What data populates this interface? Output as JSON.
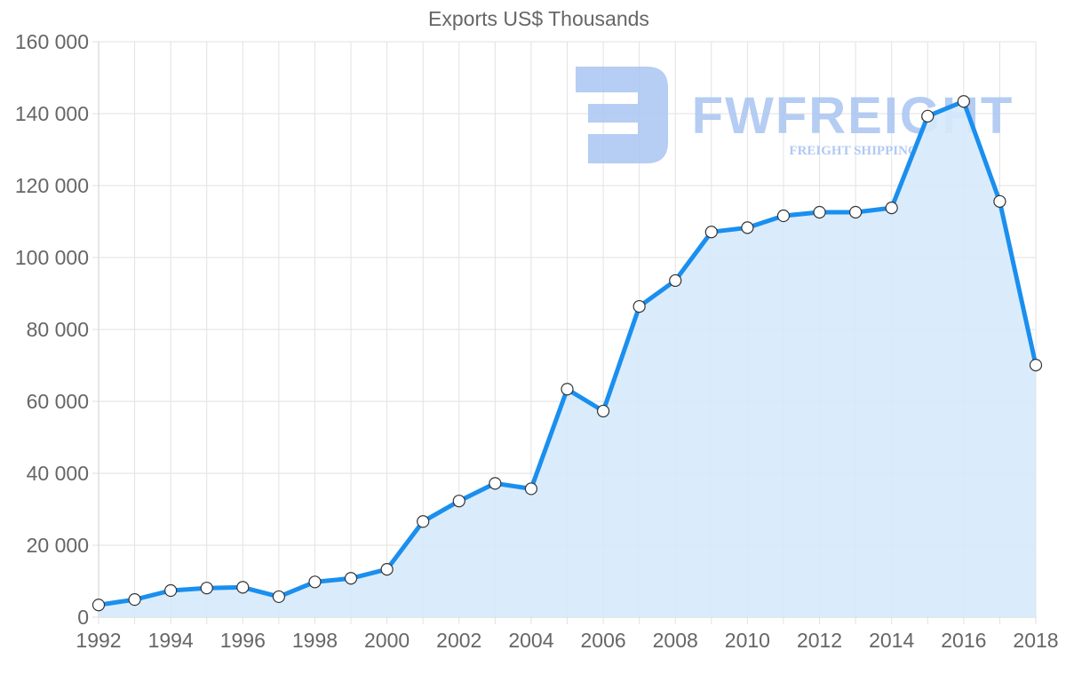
{
  "chart_data": {
    "type": "line",
    "title": "Exports US$ Thousands",
    "xlabel": "",
    "ylabel": "",
    "x": [
      1992,
      1993,
      1994,
      1995,
      1996,
      1997,
      1998,
      1999,
      2000,
      2001,
      2002,
      2003,
      2004,
      2005,
      2006,
      2007,
      2008,
      2009,
      2010,
      2011,
      2012,
      2013,
      2014,
      2015,
      2016,
      2017,
      2018
    ],
    "series": [
      {
        "name": "Exports US$ Thousands",
        "values": [
          3400,
          4900,
          7400,
          8100,
          8300,
          5700,
          9800,
          10800,
          13300,
          26600,
          32300,
          37200,
          35700,
          63400,
          57300,
          86400,
          93600,
          107100,
          108300,
          111600,
          112600,
          112600,
          113800,
          139300,
          143400,
          115600,
          70100
        ],
        "fill": true
      }
    ],
    "ylim": [
      0,
      160000
    ],
    "xlim": [
      1992,
      2018
    ],
    "y_ticks": [
      "0",
      "20 000",
      "40 000",
      "60 000",
      "80 000",
      "100 000",
      "120 000",
      "140 000",
      "160 000"
    ],
    "y_tick_values": [
      0,
      20000,
      40000,
      60000,
      80000,
      100000,
      120000,
      140000,
      160000
    ],
    "x_ticks": [
      "1992",
      "1994",
      "1996",
      "1998",
      "2000",
      "2002",
      "2004",
      "2006",
      "2008",
      "2010",
      "2012",
      "2014",
      "2016",
      "2018"
    ],
    "grid": true,
    "legend": "none"
  },
  "watermark": {
    "brand": "FWFREIGHT",
    "tagline": "FREIGHT SHIPPING"
  },
  "colors": {
    "line": "#1a8fef",
    "fill": "#d6eafc",
    "grid": "#e2e2e2",
    "axis_text": "#666666",
    "point_fill": "#ffffff",
    "point_stroke": "#333333",
    "watermark": "#a9c4f2"
  }
}
